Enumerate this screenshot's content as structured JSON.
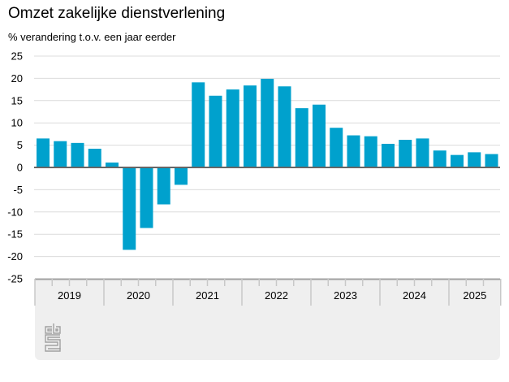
{
  "chart_data": {
    "type": "bar",
    "title": "Omzet zakelijke dienstverlening",
    "subtitle": "% verandering t.o.v. een jaar eerder",
    "xlabel": "",
    "ylabel": "% verandering t.o.v. een jaar eerder",
    "ylim": [
      -25,
      25
    ],
    "yticks": [
      "25",
      "20",
      "15",
      "10",
      "5",
      "0",
      "-5",
      "-10",
      "-15",
      "-20",
      "-25"
    ],
    "ytick_values": [
      25,
      20,
      15,
      10,
      5,
      0,
      -5,
      -10,
      -15,
      -20,
      -25
    ],
    "grid": true,
    "bar_color": "#00a1cd",
    "years": [
      {
        "label": "2019",
        "quarters": 4
      },
      {
        "label": "2020",
        "quarters": 4
      },
      {
        "label": "2021",
        "quarters": 4
      },
      {
        "label": "2022",
        "quarters": 4
      },
      {
        "label": "2023",
        "quarters": 4
      },
      {
        "label": "2024",
        "quarters": 4
      },
      {
        "label": "2025",
        "quarters": 3
      }
    ],
    "categories": [
      "2019 Q1",
      "2019 Q2",
      "2019 Q3",
      "2019 Q4",
      "2020 Q1",
      "2020 Q2",
      "2020 Q3",
      "2020 Q4",
      "2021 Q1",
      "2021 Q2",
      "2021 Q3",
      "2021 Q4",
      "2022 Q1",
      "2022 Q2",
      "2022 Q3",
      "2022 Q4",
      "2023 Q1",
      "2023 Q2",
      "2023 Q3",
      "2023 Q4",
      "2024 Q1",
      "2024 Q2",
      "2024 Q3",
      "2024 Q4",
      "2025 Q1",
      "2025 Q2",
      "2025 Q3"
    ],
    "values": [
      6.5,
      5.9,
      5.5,
      4.2,
      1.1,
      -18.5,
      -13.6,
      -8.3,
      -3.9,
      19.1,
      16.1,
      17.5,
      18.4,
      19.9,
      18.2,
      13.3,
      14.1,
      8.9,
      7.2,
      7.0,
      5.3,
      6.2,
      6.5,
      3.8,
      2.8,
      3.4,
      3.0
    ]
  },
  "logo": {
    "name": "cbs-logo",
    "text": "cbs"
  }
}
